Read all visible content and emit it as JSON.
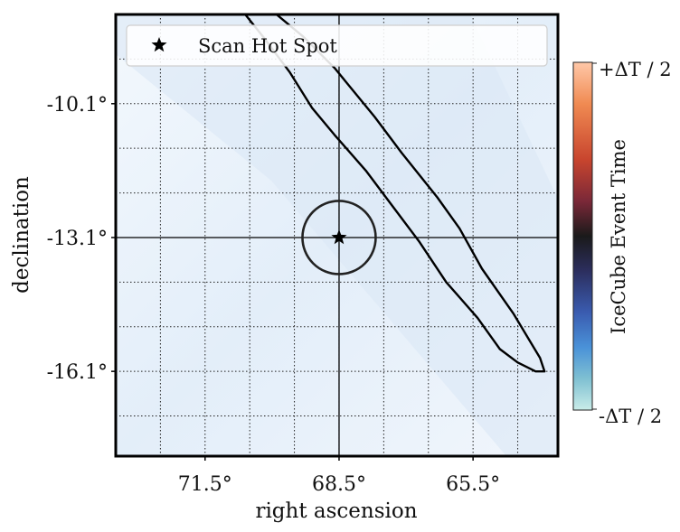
{
  "chart_data": {
    "type": "sky-map",
    "xlabel": "right ascension",
    "ylabel": "declination",
    "x_ticks": [
      {
        "value": 71.5,
        "label": "71.5°"
      },
      {
        "value": 68.5,
        "label": "68.5°"
      },
      {
        "value": 65.5,
        "label": "65.5°"
      }
    ],
    "y_ticks": [
      {
        "value": -10.1,
        "label": "-10.1°"
      },
      {
        "value": -13.1,
        "label": "-13.1°"
      },
      {
        "value": -16.1,
        "label": "-16.1°"
      }
    ],
    "xlim": [
      73.5,
      63.6
    ],
    "ylim": [
      -18.0,
      -8.1
    ],
    "grid": true,
    "grid_style": "dotted",
    "hot_spot": {
      "ra": 68.5,
      "dec": -13.1,
      "circle_radius_deg": 0.4
    },
    "legend": {
      "entries": [
        {
          "marker": "star",
          "label": "Scan Hot Spot"
        }
      ],
      "placement": "top"
    },
    "contour": [
      [
        69.9,
        -8.1
      ],
      [
        69.3,
        -8.6
      ],
      [
        68.6,
        -9.3
      ],
      [
        67.7,
        -10.4
      ],
      [
        67.1,
        -11.2
      ],
      [
        66.3,
        -12.2
      ],
      [
        65.8,
        -12.9
      ],
      [
        65.3,
        -13.8
      ],
      [
        64.6,
        -14.8
      ],
      [
        64.0,
        -15.8
      ],
      [
        63.9,
        -16.1
      ],
      [
        64.1,
        -16.1
      ],
      [
        64.5,
        -15.9
      ],
      [
        64.9,
        -15.6
      ],
      [
        65.4,
        -14.9
      ],
      [
        66.1,
        -14.1
      ],
      [
        66.7,
        -13.2
      ],
      [
        67.3,
        -12.4
      ],
      [
        67.9,
        -11.6
      ],
      [
        68.6,
        -10.8
      ],
      [
        69.1,
        -10.2
      ],
      [
        69.6,
        -9.4
      ],
      [
        70.2,
        -8.6
      ],
      [
        70.6,
        -8.1
      ]
    ],
    "colorbar": {
      "label": "IceCube Event Time",
      "tick_labels": [
        "+ΔT / 2",
        "-ΔT / 2"
      ],
      "colors": [
        "#ffc8a8",
        "#f08a52",
        "#c8452e",
        "#7a2838",
        "#1a1a1a",
        "#2c2e5e",
        "#3a5cb0",
        "#4a92d8",
        "#7fc0d2",
        "#c9ece8"
      ]
    }
  }
}
